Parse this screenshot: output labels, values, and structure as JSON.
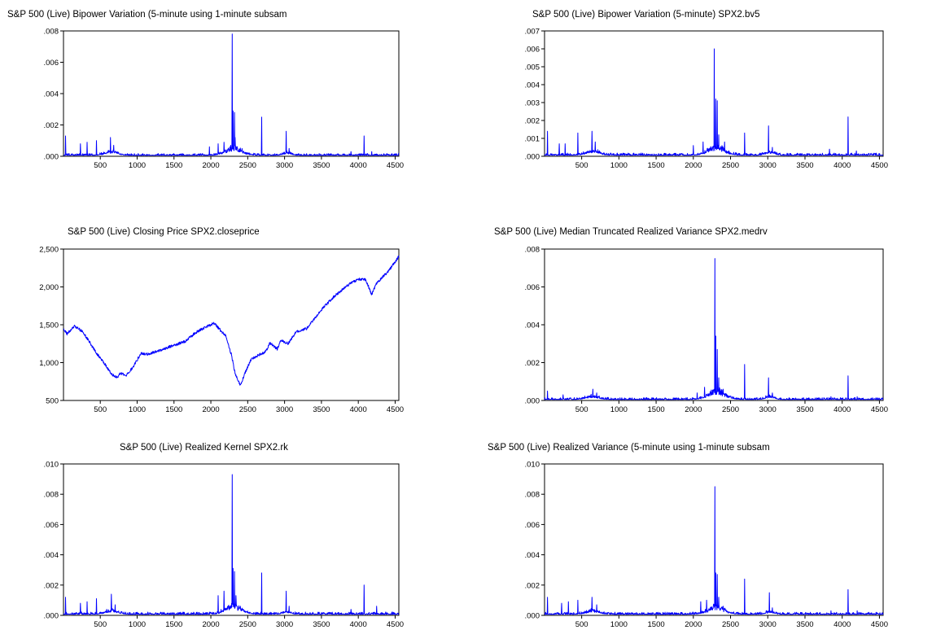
{
  "figure": {
    "line_color": "#0000ff",
    "axis_color": "#000000",
    "background": "#ffffff"
  },
  "chart_data": [
    {
      "type": "line",
      "title": "S&P 500 (Live) Bipower Variation (5-minute using 1-minute subsam",
      "xlabel": "",
      "ylabel": "",
      "xlim": [
        1,
        4550
      ],
      "ylim": [
        0,
        0.008
      ],
      "x_ticks": [
        500,
        1000,
        1500,
        2000,
        2500,
        3000,
        3500,
        4000,
        4500
      ],
      "y_ticks": [
        0,
        0.002,
        0.004,
        0.006,
        0.008
      ],
      "y_tick_labels": [
        ".000",
        ".002",
        ".004",
        ".006",
        ".008"
      ],
      "grid": false,
      "series": [
        {
          "kind": "volatility",
          "base": 6e-05,
          "noise": 0.00012,
          "spikes": [
            [
              30,
              0.0013
            ],
            [
              230,
              0.0008
            ],
            [
              320,
              0.0009
            ],
            [
              450,
              0.001
            ],
            [
              640,
              0.0012
            ],
            [
              680,
              0.0007
            ],
            [
              1980,
              0.0006
            ],
            [
              2100,
              0.0008
            ],
            [
              2180,
              0.0009
            ],
            [
              2270,
              0.0007
            ],
            [
              2290,
              0.0078
            ],
            [
              2300,
              0.0029
            ],
            [
              2320,
              0.0028
            ],
            [
              2330,
              0.0012
            ],
            [
              2400,
              0.0005
            ],
            [
              2690,
              0.0025
            ],
            [
              3020,
              0.0016
            ],
            [
              3060,
              0.0005
            ],
            [
              3900,
              0.0003
            ],
            [
              4080,
              0.0013
            ],
            [
              4180,
              0.0003
            ]
          ],
          "clusters": [
            [
              650,
              120,
              0.0003
            ],
            [
              2310,
              150,
              0.0006
            ],
            [
              3030,
              80,
              0.0002
            ]
          ]
        }
      ]
    },
    {
      "type": "line",
      "title": "S&P 500 (Live) Bipower Variation (5-minute) SPX2.bv5",
      "xlabel": "",
      "ylabel": "",
      "xlim": [
        1,
        4550
      ],
      "ylim": [
        0,
        0.007
      ],
      "x_ticks": [
        500,
        1000,
        1500,
        2000,
        2500,
        3000,
        3500,
        4000,
        4500
      ],
      "y_ticks": [
        0,
        0.001,
        0.002,
        0.003,
        0.004,
        0.005,
        0.006,
        0.007
      ],
      "y_tick_labels": [
        ".000",
        ".001",
        ".002",
        ".003",
        ".004",
        ".005",
        ".006",
        ".007"
      ],
      "grid": false,
      "series": [
        {
          "kind": "volatility",
          "base": 6e-05,
          "noise": 0.00012,
          "spikes": [
            [
              40,
              0.0014
            ],
            [
              200,
              0.0007
            ],
            [
              280,
              0.0007
            ],
            [
              450,
              0.0013
            ],
            [
              640,
              0.0014
            ],
            [
              680,
              0.0008
            ],
            [
              2000,
              0.0006
            ],
            [
              2130,
              0.0008
            ],
            [
              2280,
              0.006
            ],
            [
              2300,
              0.0032
            ],
            [
              2320,
              0.0031
            ],
            [
              2340,
              0.0012
            ],
            [
              2420,
              0.0008
            ],
            [
              2690,
              0.0013
            ],
            [
              3010,
              0.0017
            ],
            [
              3060,
              0.0005
            ],
            [
              3830,
              0.0004
            ],
            [
              4080,
              0.0022
            ],
            [
              4190,
              0.0003
            ]
          ],
          "clusters": [
            [
              650,
              120,
              0.0003
            ],
            [
              2310,
              150,
              0.0006
            ],
            [
              3030,
              80,
              0.0002
            ]
          ]
        }
      ]
    },
    {
      "type": "line",
      "title": "S&P 500 (Live) Closing Price SPX2.closeprice",
      "xlabel": "",
      "ylabel": "",
      "xlim": [
        1,
        4550
      ],
      "ylim": [
        500,
        2500
      ],
      "x_ticks": [
        500,
        1000,
        1500,
        2000,
        2500,
        3000,
        3500,
        4000,
        4500
      ],
      "y_ticks": [
        500,
        1000,
        1500,
        2000,
        2500
      ],
      "y_tick_labels": [
        "500",
        "1,000",
        "1,500",
        "2,000",
        "2,500"
      ],
      "grid": false,
      "series": [
        {
          "kind": "price",
          "noise": 18,
          "anchors": [
            [
              1,
              1450
            ],
            [
              50,
              1380
            ],
            [
              150,
              1480
            ],
            [
              250,
              1420
            ],
            [
              350,
              1280
            ],
            [
              450,
              1120
            ],
            [
              550,
              1000
            ],
            [
              650,
              850
            ],
            [
              720,
              800
            ],
            [
              780,
              860
            ],
            [
              850,
              820
            ],
            [
              950,
              950
            ],
            [
              1050,
              1120
            ],
            [
              1150,
              1110
            ],
            [
              1300,
              1160
            ],
            [
              1500,
              1230
            ],
            [
              1650,
              1280
            ],
            [
              1800,
              1400
            ],
            [
              1950,
              1480
            ],
            [
              2050,
              1520
            ],
            [
              2100,
              1460
            ],
            [
              2200,
              1350
            ],
            [
              2280,
              1100
            ],
            [
              2330,
              850
            ],
            [
              2400,
              700
            ],
            [
              2480,
              900
            ],
            [
              2550,
              1050
            ],
            [
              2650,
              1100
            ],
            [
              2750,
              1150
            ],
            [
              2800,
              1260
            ],
            [
              2900,
              1180
            ],
            [
              2950,
              1300
            ],
            [
              3050,
              1250
            ],
            [
              3150,
              1400
            ],
            [
              3300,
              1450
            ],
            [
              3500,
              1700
            ],
            [
              3700,
              1900
            ],
            [
              3900,
              2050
            ],
            [
              4000,
              2100
            ],
            [
              4100,
              2100
            ],
            [
              4180,
              1900
            ],
            [
              4250,
              2050
            ],
            [
              4400,
              2200
            ],
            [
              4550,
              2400
            ]
          ]
        }
      ]
    },
    {
      "type": "line",
      "title": "S&P 500 (Live) Median Truncated Realized Variance SPX2.medrv",
      "xlabel": "",
      "ylabel": "",
      "xlim": [
        1,
        4550
      ],
      "ylim": [
        0,
        0.008
      ],
      "x_ticks": [
        500,
        1000,
        1500,
        2000,
        2500,
        3000,
        3500,
        4000,
        4500
      ],
      "y_ticks": [
        0,
        0.002,
        0.004,
        0.006,
        0.008
      ],
      "y_tick_labels": [
        ".000",
        ".002",
        ".004",
        ".006",
        ".008"
      ],
      "grid": false,
      "series": [
        {
          "kind": "volatility",
          "base": 5e-05,
          "noise": 0.0001,
          "spikes": [
            [
              40,
              0.0005
            ],
            [
              250,
              0.0003
            ],
            [
              650,
              0.0006
            ],
            [
              700,
              0.0004
            ],
            [
              2050,
              0.0004
            ],
            [
              2150,
              0.0007
            ],
            [
              2270,
              0.0005
            ],
            [
              2290,
              0.0075
            ],
            [
              2300,
              0.0034
            ],
            [
              2320,
              0.0027
            ],
            [
              2340,
              0.0012
            ],
            [
              2400,
              0.0006
            ],
            [
              2690,
              0.0019
            ],
            [
              3010,
              0.0012
            ],
            [
              3060,
              0.0004
            ],
            [
              3850,
              0.0002
            ],
            [
              4080,
              0.0013
            ],
            [
              4200,
              0.0002
            ]
          ],
          "clusters": [
            [
              650,
              120,
              0.0002
            ],
            [
              2310,
              150,
              0.0006
            ],
            [
              3030,
              80,
              0.0002
            ]
          ]
        }
      ]
    },
    {
      "type": "line",
      "title": "S&P 500 (Live) Realized Kernel SPX2.rk",
      "xlabel": "",
      "ylabel": "",
      "xlim": [
        1,
        4550
      ],
      "ylim": [
        0,
        0.01
      ],
      "x_ticks": [
        500,
        1000,
        1500,
        2000,
        2500,
        3000,
        3500,
        4000,
        4500
      ],
      "y_ticks": [
        0,
        0.002,
        0.004,
        0.006,
        0.008,
        0.01
      ],
      "y_tick_labels": [
        ".000",
        ".002",
        ".004",
        ".006",
        ".008",
        ".010"
      ],
      "grid": false,
      "series": [
        {
          "kind": "volatility",
          "base": 7e-05,
          "noise": 0.00015,
          "spikes": [
            [
              30,
              0.0012
            ],
            [
              230,
              0.0008
            ],
            [
              320,
              0.0009
            ],
            [
              450,
              0.0011
            ],
            [
              650,
              0.0014
            ],
            [
              700,
              0.0007
            ],
            [
              2100,
              0.0013
            ],
            [
              2180,
              0.0016
            ],
            [
              2290,
              0.0093
            ],
            [
              2300,
              0.0031
            ],
            [
              2320,
              0.0029
            ],
            [
              2340,
              0.0013
            ],
            [
              2400,
              0.0006
            ],
            [
              2690,
              0.0028
            ],
            [
              3020,
              0.0016
            ],
            [
              3060,
              0.0006
            ],
            [
              3900,
              0.0004
            ],
            [
              4080,
              0.002
            ],
            [
              4250,
              0.0006
            ]
          ],
          "clusters": [
            [
              650,
              120,
              0.0003
            ],
            [
              2310,
              150,
              0.0007
            ],
            [
              3030,
              80,
              0.0002
            ]
          ]
        }
      ]
    },
    {
      "type": "line",
      "title": "S&P 500 (Live) Realized Variance (5-minute using 1-minute subsam",
      "xlabel": "",
      "ylabel": "",
      "xlim": [
        1,
        4550
      ],
      "ylim": [
        0,
        0.01
      ],
      "x_ticks": [
        500,
        1000,
        1500,
        2000,
        2500,
        3000,
        3500,
        4000,
        4500
      ],
      "y_ticks": [
        0,
        0.002,
        0.004,
        0.006,
        0.008,
        0.01
      ],
      "y_tick_labels": [
        ".000",
        ".002",
        ".004",
        ".006",
        ".008",
        ".010"
      ],
      "grid": false,
      "series": [
        {
          "kind": "volatility",
          "base": 7e-05,
          "noise": 0.00014,
          "spikes": [
            [
              40,
              0.0012
            ],
            [
              230,
              0.0008
            ],
            [
              320,
              0.0009
            ],
            [
              450,
              0.001
            ],
            [
              640,
              0.0012
            ],
            [
              700,
              0.0007
            ],
            [
              2100,
              0.0009
            ],
            [
              2180,
              0.001
            ],
            [
              2290,
              0.0085
            ],
            [
              2300,
              0.0028
            ],
            [
              2320,
              0.0027
            ],
            [
              2340,
              0.0012
            ],
            [
              2400,
              0.0006
            ],
            [
              2690,
              0.0024
            ],
            [
              3020,
              0.0015
            ],
            [
              3060,
              0.0005
            ],
            [
              3850,
              0.0003
            ],
            [
              4080,
              0.0017
            ],
            [
              4200,
              0.0003
            ]
          ],
          "clusters": [
            [
              650,
              120,
              0.0003
            ],
            [
              2310,
              150,
              0.0006
            ],
            [
              3030,
              80,
              0.0002
            ]
          ]
        }
      ]
    }
  ]
}
